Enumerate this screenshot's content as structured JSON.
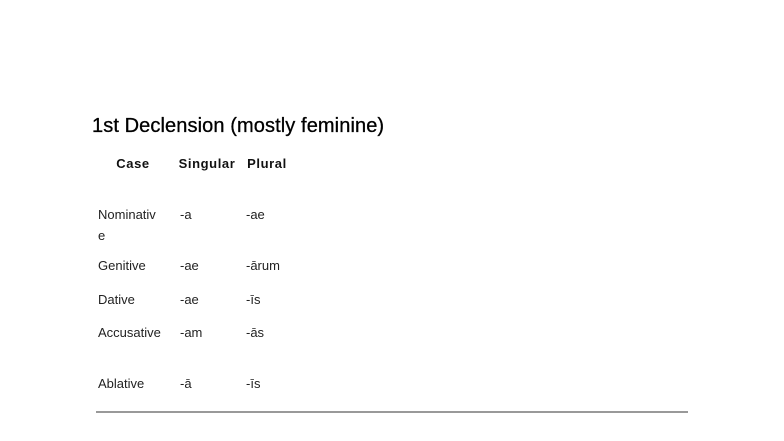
{
  "heading": "1st Declension (mostly feminine)",
  "table": {
    "headers": [
      "Case",
      "Singular",
      "Plural"
    ],
    "rows": [
      [
        "Nominative",
        "-a",
        "-ae"
      ],
      [
        "Genitive",
        "-ae",
        "-ārum"
      ],
      [
        "Dative",
        "-ae",
        "-īs"
      ],
      [
        "Accusative",
        "-am",
        "-ās"
      ],
      [
        "Ablative",
        "-ā",
        "-īs"
      ]
    ]
  }
}
